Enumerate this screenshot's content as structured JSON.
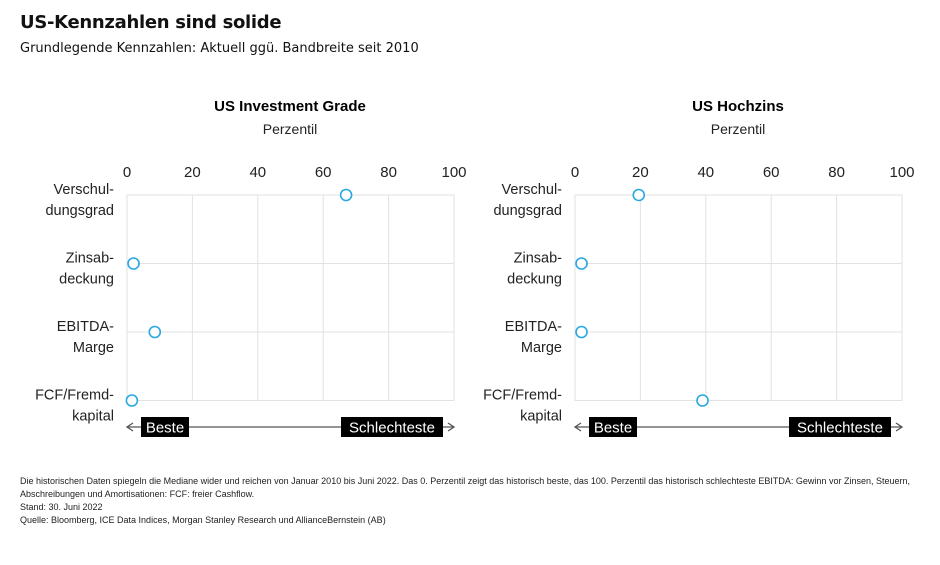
{
  "title": "US-Kennzahlen sind solide",
  "subtitle": "Grundlegende Kennzahlen: Aktuell ggü. Bandbreite seit 2010",
  "chart_data": [
    {
      "type": "scatter",
      "title": "US Investment Grade",
      "xlabel": "Perzentil",
      "xlim": [
        0,
        100
      ],
      "xticks": [
        0,
        20,
        40,
        60,
        80,
        100
      ],
      "grid": true,
      "categories": [
        [
          "Verschul-",
          "dungsgrad"
        ],
        [
          "Zinsab-",
          "deckung"
        ],
        [
          "EBITDA-",
          "Marge"
        ],
        [
          "FCF/Fremd-",
          "kapital"
        ]
      ],
      "values": [
        67,
        2,
        8.5,
        1.5
      ],
      "arrow_labels": {
        "left": "Beste",
        "right": "Schlechteste"
      },
      "marker_color": "#29a8e0"
    },
    {
      "type": "scatter",
      "title": "US Hochzins",
      "xlabel": "Perzentil",
      "xlim": [
        0,
        100
      ],
      "xticks": [
        0,
        20,
        40,
        60,
        80,
        100
      ],
      "grid": true,
      "categories": [
        [
          "Verschul-",
          "dungsgrad"
        ],
        [
          "Zinsab-",
          "deckung"
        ],
        [
          "EBITDA-",
          "Marge"
        ],
        [
          "FCF/Fremd-",
          "kapital"
        ]
      ],
      "values": [
        19.5,
        2,
        2,
        39
      ],
      "arrow_labels": {
        "left": "Beste",
        "right": "Schlechteste"
      },
      "marker_color": "#29a8e0"
    }
  ],
  "notes": [
    "Die historischen Daten spiegeln die Mediane wider und reichen von Januar 2010 bis Juni 2022. Das 0. Perzentil zeigt das historisch beste, das 100. Perzentil das historisch schlechteste EBITDA: Gewinn vor Zinsen, Steuern, Abschreibungen und Amortisationen: FCF: freier Cashflow.",
    "Stand: 30. Juni 2022",
    "Quelle: Bloomberg, ICE Data Indices, Morgan Stanley Research und AllianceBernstein (AB)"
  ]
}
